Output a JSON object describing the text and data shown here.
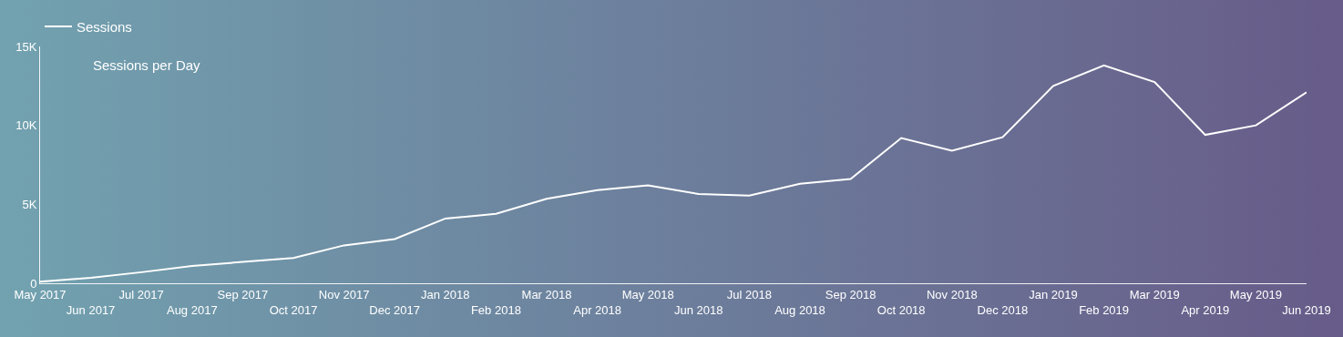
{
  "chart_data": {
    "type": "line",
    "annotations": [
      "Sessions per Day"
    ],
    "categories": [
      "May 2017",
      "Jun 2017",
      "Jul 2017",
      "Aug 2017",
      "Sep 2017",
      "Oct 2017",
      "Nov 2017",
      "Dec 2017",
      "Jan 2018",
      "Feb 2018",
      "Mar 2018",
      "Apr 2018",
      "May 2018",
      "Jun 2018",
      "Jul 2018",
      "Aug 2018",
      "Sep 2018",
      "Oct 2018",
      "Nov 2018",
      "Dec 2018",
      "Jan 2019",
      "Feb 2019",
      "Mar 2019",
      "Apr 2019",
      "May 2019",
      "Jun 2019"
    ],
    "series": [
      {
        "name": "Sessions",
        "color": "#ffffff",
        "values": [
          100,
          350,
          700,
          1100,
          1350,
          1600,
          2400,
          2800,
          4100,
          4400,
          5350,
          5900,
          6200,
          5650,
          5550,
          6300,
          6600,
          9200,
          8400,
          9250,
          12500,
          13800,
          12750,
          9400,
          10000,
          12100
        ]
      }
    ],
    "ylim": [
      0,
      15000
    ],
    "yticks": [
      0,
      {
        "value": 5000,
        "label": "5K"
      },
      {
        "value": 10000,
        "label": "10K"
      },
      {
        "value": 15000,
        "label": "15K"
      }
    ],
    "grid": false,
    "legend": "top left",
    "marker": "none",
    "line_style": "solid"
  }
}
